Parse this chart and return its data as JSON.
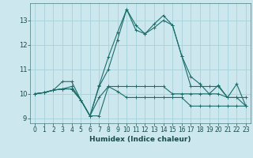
{
  "title": "",
  "xlabel": "Humidex (Indice chaleur)",
  "ylabel": "",
  "bg_color": "#cce8ee",
  "grid_color": "#aad4dc",
  "line_color": "#1a6e6a",
  "xlim": [
    -0.5,
    23.5
  ],
  "ylim": [
    8.8,
    13.7
  ],
  "yticks": [
    9,
    10,
    11,
    12,
    13
  ],
  "xticks": [
    0,
    1,
    2,
    3,
    4,
    5,
    6,
    7,
    8,
    9,
    10,
    11,
    12,
    13,
    14,
    15,
    16,
    17,
    18,
    19,
    20,
    21,
    22,
    23
  ],
  "series": [
    [
      10.0,
      10.05,
      10.15,
      10.2,
      10.2,
      9.75,
      9.1,
      9.1,
      10.3,
      10.3,
      10.3,
      10.3,
      10.3,
      10.3,
      10.3,
      10.0,
      10.0,
      10.0,
      10.0,
      10.0,
      10.0,
      9.85,
      9.85,
      9.85
    ],
    [
      10.0,
      10.05,
      10.15,
      10.2,
      10.2,
      9.75,
      9.1,
      9.85,
      10.3,
      10.1,
      9.85,
      9.85,
      9.85,
      9.85,
      9.85,
      9.85,
      9.85,
      9.5,
      9.5,
      9.5,
      9.5,
      9.5,
      9.5,
      9.5
    ],
    [
      10.0,
      10.05,
      10.15,
      10.5,
      10.5,
      9.75,
      9.1,
      10.35,
      11.5,
      12.5,
      13.45,
      12.8,
      12.45,
      12.85,
      13.2,
      12.8,
      11.55,
      10.7,
      10.4,
      10.0,
      10.35,
      9.85,
      10.4,
      9.5
    ],
    [
      10.0,
      10.05,
      10.15,
      10.2,
      10.3,
      9.75,
      9.1,
      10.3,
      11.0,
      12.2,
      13.45,
      12.6,
      12.45,
      12.7,
      13.0,
      12.8,
      11.55,
      10.3,
      10.3,
      10.3,
      10.3,
      9.85,
      9.85,
      9.5
    ]
  ]
}
